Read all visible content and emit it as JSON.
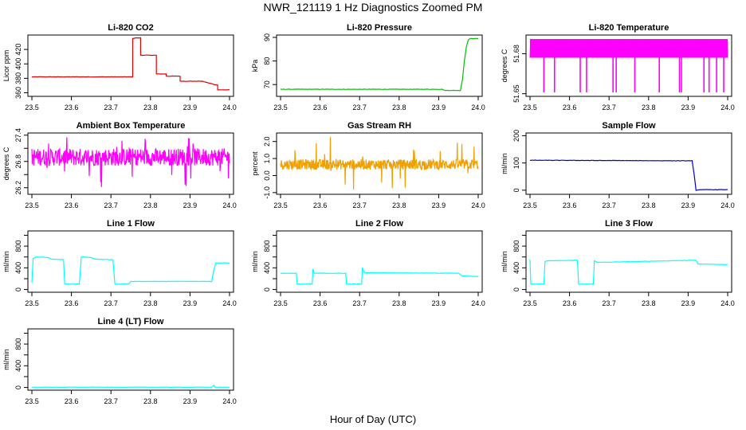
{
  "title": "NWR_121119  1 Hz Diagnostics Zoomed PM",
  "xlabel": "Hour of Day (UTC)",
  "chart_data": [
    {
      "type": "line",
      "title": "Li-820 CO2",
      "ylabel": "Licor ppm",
      "color": "#e00000",
      "xlim": [
        23.5,
        24.0
      ],
      "ylim": [
        355,
        440
      ],
      "yticks": [
        360,
        380,
        400,
        420
      ],
      "xticks": [
        23.5,
        23.6,
        23.7,
        23.8,
        23.9,
        24.0
      ],
      "x": [
        23.5,
        23.755,
        23.755,
        23.762,
        23.775,
        23.775,
        23.8,
        23.815,
        23.815,
        23.84,
        23.84,
        23.87,
        23.875,
        23.875,
        23.93,
        23.93,
        23.965,
        23.97,
        23.97,
        24.0
      ],
      "y": [
        382,
        382,
        435,
        436,
        436,
        412,
        412,
        412,
        386,
        386,
        383,
        383,
        383,
        376,
        376,
        376,
        371,
        371,
        364,
        364
      ]
    },
    {
      "type": "line",
      "title": "Li-820 Pressure",
      "ylabel": "kPa",
      "color": "#00c000",
      "xlim": [
        23.5,
        24.0
      ],
      "ylim": [
        65,
        91
      ],
      "yticks": [
        70,
        80,
        90
      ],
      "xticks": [
        23.5,
        23.6,
        23.7,
        23.8,
        23.9,
        24.0
      ],
      "x": [
        23.5,
        23.91,
        23.915,
        23.955,
        23.96,
        23.965,
        23.97,
        23.975,
        23.98,
        24.0
      ],
      "y": [
        68,
        68,
        67.5,
        67.5,
        72,
        80,
        86,
        89,
        89.5,
        89.5
      ]
    },
    {
      "type": "line",
      "title": "Li-820 Temperature",
      "ylabel": "degrees C",
      "color": "#ff00ff",
      "xlim": [
        23.5,
        24.0
      ],
      "ylim": [
        51.648,
        51.694
      ],
      "yticks": [
        51.65,
        51.68
      ],
      "ytick_labels": [
        "51.65",
        "51.68"
      ],
      "xticks": [
        23.5,
        23.6,
        23.7,
        23.8,
        23.9,
        24.0
      ],
      "levels": [
        51.677,
        51.691
      ],
      "dips": [
        23.535,
        23.562,
        23.627,
        23.643,
        23.71,
        23.718,
        23.765,
        23.827,
        23.878,
        23.883,
        23.94,
        23.953,
        23.972,
        23.99
      ],
      "dip_value": 51.651
    },
    {
      "type": "line",
      "title": "Ambient Box Temperature",
      "ylabel": "degrees C",
      "color": "#ff00ff",
      "xlim": [
        23.5,
        24.0
      ],
      "ylim": [
        26.05,
        27.45
      ],
      "yticks": [
        26.2,
        26.5,
        26.8,
        27.1,
        27.4
      ],
      "ytick_labels": [
        "26.2",
        "",
        "26.8",
        "",
        "27.4"
      ],
      "xticks": [
        23.5,
        23.6,
        23.7,
        23.8,
        23.9,
        24.0
      ],
      "band": [
        26.7,
        27.1
      ],
      "range": [
        26.2,
        27.4
      ]
    },
    {
      "type": "line",
      "title": "Gas Stream RH",
      "ylabel": "percent",
      "color": "#f0a000",
      "xlim": [
        23.5,
        24.0
      ],
      "ylim": [
        -1.1,
        2.5
      ],
      "yticks": [
        -1,
        0,
        1,
        2
      ],
      "ytick_labels": [
        "-1.0",
        "0.0",
        "1.0",
        "2.0"
      ],
      "xticks": [
        23.5,
        23.6,
        23.7,
        23.8,
        23.9,
        24.0
      ],
      "band": [
        0.35,
        0.95
      ],
      "range": [
        -0.9,
        2.3
      ]
    },
    {
      "type": "line",
      "title": "Sample Flow",
      "ylabel": "ml/min",
      "color": "#0000cc",
      "xlim": [
        23.5,
        24.0
      ],
      "ylim": [
        -15,
        210
      ],
      "yticks": [
        0,
        100,
        200
      ],
      "xticks": [
        23.5,
        23.6,
        23.7,
        23.8,
        23.9,
        24.0
      ],
      "x": [
        23.5,
        23.88,
        23.91,
        23.915,
        23.92,
        23.93,
        24.0
      ],
      "y": [
        110,
        108,
        108,
        60,
        0,
        2,
        2
      ]
    },
    {
      "type": "line",
      "title": "Line 1 Flow",
      "ylabel": "ml/min",
      "color": "#00ffff",
      "xlim": [
        23.5,
        24.0
      ],
      "ylim": [
        -50,
        1080
      ],
      "yticks": [
        0,
        200,
        400,
        600,
        800,
        1000
      ],
      "ytick_labels": [
        "0",
        "",
        "400",
        "",
        "800",
        ""
      ],
      "xticks": [
        23.5,
        23.6,
        23.7,
        23.8,
        23.9,
        24.0
      ],
      "x": [
        23.5,
        23.503,
        23.51,
        23.54,
        23.55,
        23.58,
        23.583,
        23.62,
        23.625,
        23.65,
        23.66,
        23.705,
        23.71,
        23.745,
        23.75,
        23.955,
        23.96,
        23.965,
        24.0
      ],
      "y": [
        130,
        570,
        600,
        590,
        560,
        550,
        100,
        100,
        600,
        590,
        560,
        550,
        100,
        100,
        150,
        150,
        350,
        490,
        490
      ]
    },
    {
      "type": "line",
      "title": "Line 2 Flow",
      "ylabel": "ml/min",
      "color": "#00ffff",
      "xlim": [
        23.5,
        24.0
      ],
      "ylim": [
        -50,
        1080
      ],
      "yticks": [
        0,
        200,
        400,
        600,
        800,
        1000
      ],
      "ytick_labels": [
        "0",
        "",
        "400",
        "",
        "800",
        ""
      ],
      "xticks": [
        23.5,
        23.6,
        23.7,
        23.8,
        23.9,
        24.0
      ],
      "x": [
        23.5,
        23.54,
        23.542,
        23.58,
        23.582,
        23.585,
        23.665,
        23.667,
        23.705,
        23.707,
        23.712,
        23.95,
        23.96,
        24.0
      ],
      "y": [
        300,
        300,
        100,
        100,
        380,
        300,
        300,
        100,
        100,
        400,
        310,
        300,
        250,
        240
      ]
    },
    {
      "type": "line",
      "title": "Line 3 Flow",
      "ylabel": "ml/min",
      "color": "#00ffff",
      "xlim": [
        23.5,
        24.0
      ],
      "ylim": [
        -50,
        1080
      ],
      "yticks": [
        0,
        200,
        400,
        600,
        800,
        1000
      ],
      "ytick_labels": [
        "0",
        "",
        "400",
        "",
        "800",
        ""
      ],
      "xticks": [
        23.5,
        23.6,
        23.7,
        23.8,
        23.9,
        24.0
      ],
      "x": [
        23.5,
        23.502,
        23.505,
        23.535,
        23.538,
        23.545,
        23.62,
        23.623,
        23.66,
        23.663,
        23.67,
        23.92,
        23.925,
        24.0
      ],
      "y": [
        550,
        100,
        100,
        100,
        520,
        530,
        540,
        100,
        100,
        530,
        500,
        540,
        470,
        460
      ]
    },
    {
      "type": "line",
      "title": "Line 4 (LT) Flow",
      "ylabel": "ml/min",
      "color": "#00ffff",
      "xlim": [
        23.5,
        24.0
      ],
      "ylim": [
        -50,
        1080
      ],
      "yticks": [
        0,
        200,
        400,
        600,
        800,
        1000
      ],
      "ytick_labels": [
        "0",
        "",
        "400",
        "",
        "800",
        ""
      ],
      "xticks": [
        23.5,
        23.6,
        23.7,
        23.8,
        23.9,
        24.0
      ],
      "x": [
        23.5,
        23.955,
        23.96,
        23.963,
        23.966,
        24.0
      ],
      "y": [
        5,
        5,
        40,
        5,
        5,
        5
      ]
    }
  ]
}
